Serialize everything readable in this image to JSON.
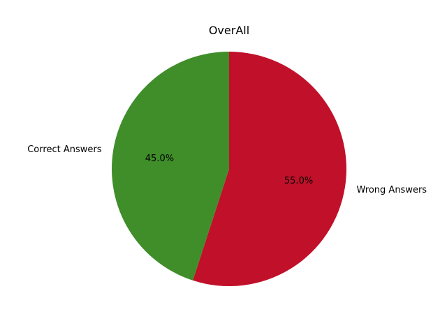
{
  "chart_data": {
    "type": "pie",
    "title": "OverAll",
    "slices": [
      {
        "label": "Wrong Answers",
        "value": 55.0,
        "pct_label": "55.0%",
        "color": "#c0102a"
      },
      {
        "label": "Correct Answers",
        "value": 45.0,
        "pct_label": "45.0%",
        "color": "#3f8e2a"
      }
    ]
  }
}
